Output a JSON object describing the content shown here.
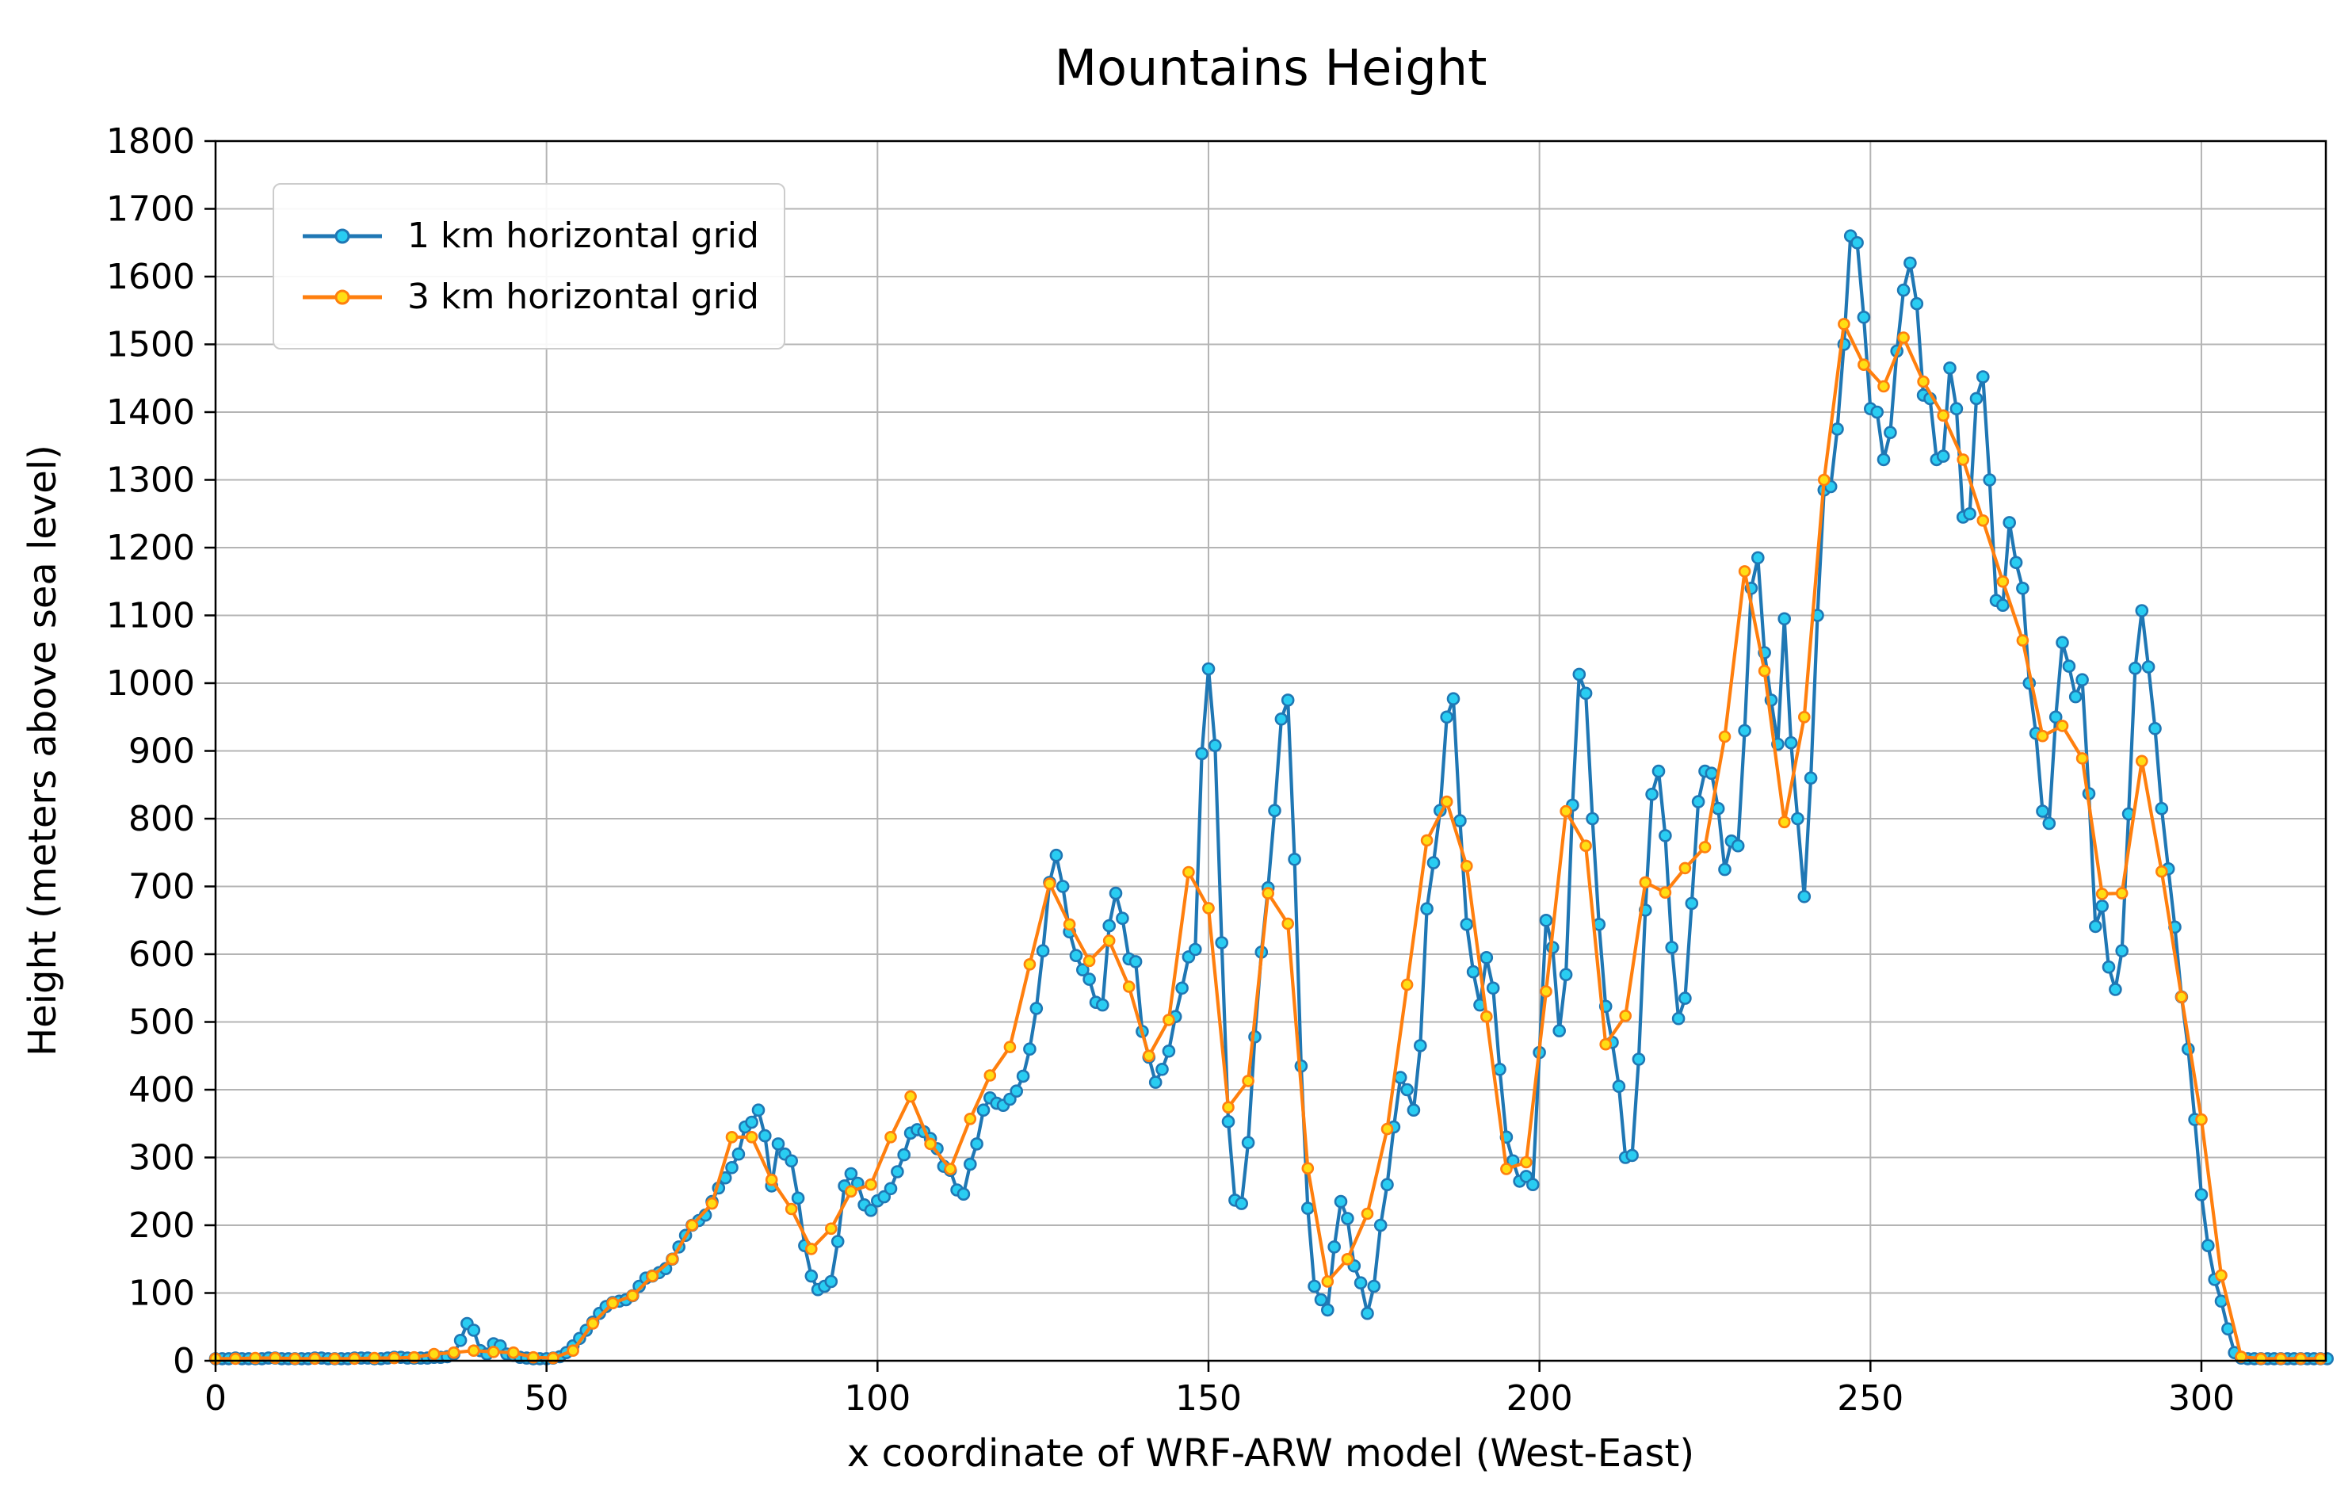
{
  "chart_data": {
    "type": "line",
    "title": "Mountains Height",
    "xlabel": "x coordinate of WRF-ARW model (West-East)",
    "ylabel": "Height (meters above sea level)",
    "xlim": [
      0,
      318.8
    ],
    "ylim": [
      0,
      1800
    ],
    "xticks": [
      0,
      50,
      100,
      150,
      200,
      250,
      300
    ],
    "yticks": [
      0,
      100,
      200,
      300,
      400,
      500,
      600,
      700,
      800,
      900,
      1000,
      1100,
      1200,
      1300,
      1400,
      1500,
      1600,
      1700,
      1800
    ],
    "grid": true,
    "grid_color": "#b4b4b4",
    "legend_position": "upper-left",
    "series": [
      {
        "name": "1 km horizontal grid",
        "line_color": "#1f77b4",
        "marker_face": "#29CDF2",
        "marker_edge": "#1f77b4",
        "x_start": 0,
        "x_step": 1,
        "values": [
          3,
          3,
          3,
          4,
          3,
          3,
          3,
          3,
          4,
          4,
          3,
          3,
          3,
          3,
          3,
          4,
          4,
          3,
          3,
          3,
          3,
          4,
          4,
          4,
          3,
          3,
          4,
          5,
          5,
          4,
          4,
          4,
          4,
          5,
          5,
          6,
          10,
          30,
          55,
          45,
          15,
          10,
          25,
          22,
          10,
          8,
          5,
          4,
          3,
          3,
          3,
          4,
          6,
          12,
          22,
          33,
          45,
          57,
          70,
          80,
          86,
          88,
          90,
          96,
          110,
          122,
          125,
          130,
          136,
          150,
          168,
          185,
          200,
          207,
          215,
          235,
          255,
          270,
          285,
          305,
          345,
          352,
          370,
          332,
          258,
          320,
          305,
          295,
          240,
          170,
          125,
          105,
          110,
          117,
          176,
          258,
          276,
          262,
          230,
          222,
          236,
          242,
          254,
          279,
          304,
          336,
          341,
          338,
          328,
          313,
          287,
          281,
          252,
          246,
          290,
          320,
          370,
          388,
          380,
          377,
          386,
          398,
          420,
          460,
          520,
          605,
          706,
          746,
          700,
          633,
          598,
          577,
          563,
          529,
          525,
          642,
          690,
          653,
          593,
          589,
          486,
          448,
          411,
          430,
          457,
          508,
          550,
          596,
          607,
          896,
          1021,
          908,
          617,
          353,
          237,
          232,
          322,
          478,
          603,
          698,
          812,
          947,
          975,
          740,
          435,
          225,
          110,
          90,
          75,
          168,
          235,
          210,
          140,
          115,
          70,
          110,
          200,
          260,
          345,
          418,
          400,
          370,
          465,
          667,
          735,
          812,
          950,
          977,
          797,
          644,
          574,
          525,
          595,
          550,
          430,
          330,
          295,
          265,
          272,
          260,
          455,
          650,
          610,
          487,
          570,
          820,
          1013,
          985,
          800,
          644,
          523,
          470,
          405,
          300,
          303,
          445,
          665,
          836,
          870,
          775,
          610,
          505,
          535,
          675,
          825,
          870,
          867,
          815,
          725,
          767,
          760,
          930,
          1140,
          1185,
          1045,
          975,
          910,
          1095,
          912,
          800,
          685,
          860,
          1100,
          1285,
          1290,
          1375,
          1500,
          1660,
          1650,
          1540,
          1405,
          1400,
          1330,
          1370,
          1490,
          1580,
          1620,
          1560,
          1425,
          1420,
          1330,
          1335,
          1465,
          1405,
          1245,
          1250,
          1420,
          1452,
          1300,
          1122,
          1115,
          1237,
          1178,
          1140,
          1000,
          926,
          811,
          793,
          950,
          1060,
          1025,
          980,
          1005,
          837,
          641,
          671,
          581,
          548,
          605,
          807,
          1022,
          1107,
          1024,
          933,
          815,
          726,
          640,
          537,
          460,
          356,
          245,
          170,
          120,
          88,
          47,
          12,
          4,
          3,
          3,
          3,
          3,
          3,
          3,
          3,
          3,
          3,
          3,
          3,
          3,
          3
        ]
      },
      {
        "name": "3 km horizontal grid",
        "line_color": "#ff7f0e",
        "marker_face": "#FFDE14",
        "marker_edge": "#ff7f0e",
        "x_start": 0,
        "x_step": 3,
        "values": [
          3,
          3,
          4,
          4,
          3,
          3,
          3,
          3,
          4,
          4,
          5,
          10,
          12,
          15,
          13,
          12,
          5,
          4,
          15,
          55,
          85,
          96,
          125,
          150,
          200,
          232,
          330,
          330,
          267,
          224,
          165,
          195,
          250,
          260,
          330,
          390,
          320,
          283,
          357,
          421,
          463,
          585,
          704,
          644,
          590,
          620,
          552,
          450,
          503,
          721,
          668,
          374,
          413,
          690,
          645,
          284,
          117,
          150,
          217,
          342,
          555,
          768,
          825,
          730,
          508,
          283,
          293,
          545,
          811,
          760,
          467,
          509,
          706,
          691,
          727,
          758,
          921,
          1165,
          1018,
          795,
          950,
          1300,
          1530,
          1470,
          1438,
          1510,
          1445,
          1395,
          1330,
          1240,
          1150,
          1063,
          922,
          937,
          889,
          689,
          690,
          885,
          722,
          537,
          356,
          126,
          6,
          3,
          3,
          3,
          3
        ]
      }
    ]
  }
}
